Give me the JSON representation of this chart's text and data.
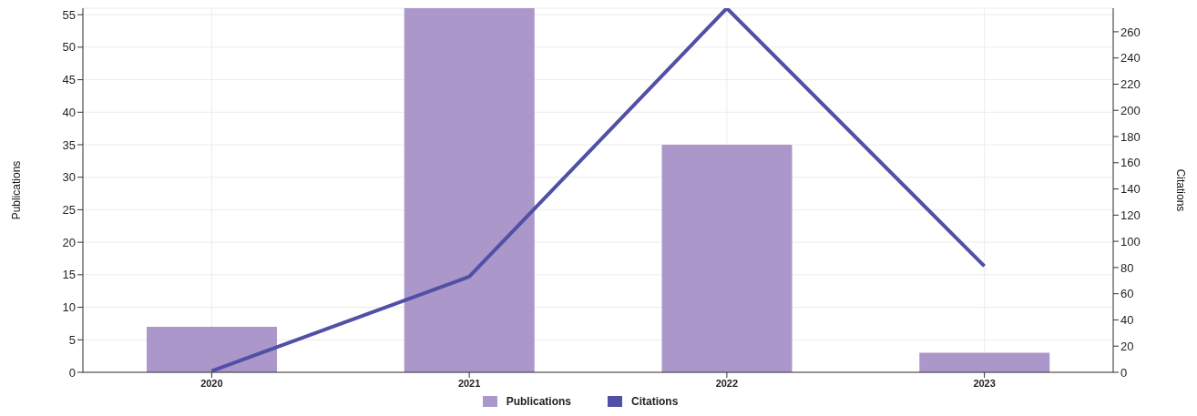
{
  "chart_data": {
    "type": "bar",
    "ylabel": "Publications",
    "y2label": "Citations",
    "categories": [
      "2020",
      "2021",
      "2022",
      "2023"
    ],
    "series": [
      {
        "name": "Publications",
        "color": "#ab97c9",
        "values": [
          7,
          56,
          35,
          3
        ]
      },
      {
        "name": "Citations",
        "type": "line",
        "axis": "y2",
        "color": "#5050a6",
        "values": [
          1,
          73,
          278,
          81
        ]
      }
    ],
    "ylim": [
      0,
      56
    ],
    "yticks": [
      0,
      5,
      10,
      15,
      20,
      25,
      30,
      35,
      40,
      45,
      50,
      55
    ],
    "y2lim": [
      0,
      278
    ],
    "y2ticks": [
      0,
      20,
      40,
      60,
      80,
      100,
      120,
      140,
      160,
      180,
      200,
      220,
      240,
      260
    ],
    "grid": true,
    "legend": "bottom",
    "marker": "none"
  }
}
